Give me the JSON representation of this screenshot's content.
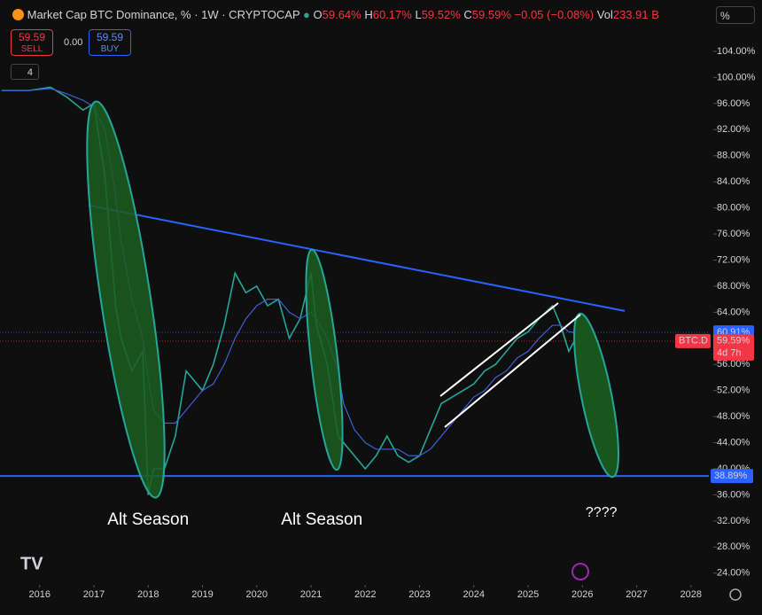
{
  "header": {
    "title": "Market Cap BTC Dominance, % · 1W · CRYPTOCAP",
    "ohlc": [
      {
        "key": "O",
        "value": "59.64%"
      },
      {
        "key": "H",
        "value": "60.17%"
      },
      {
        "key": "L",
        "value": "59.52%"
      },
      {
        "key": "C",
        "value": "59.59%"
      }
    ],
    "change": "−0.05 (−0.08%)",
    "vol_label": "Vol",
    "vol": "233.91 B"
  },
  "trade": {
    "sell_price": "59.59",
    "sell": "SELL",
    "spread": "0.00",
    "buy_price": "59.59",
    "buy": "BUY"
  },
  "toolbar": {
    "scale": "%",
    "indicators": "4"
  },
  "chart_data": {
    "type": "line",
    "x": [
      2015.3,
      2015.8,
      2016.2,
      2016.5,
      2016.8,
      2017.0,
      2017.2,
      2017.4,
      2017.5,
      2017.7,
      2017.9,
      2018.0,
      2018.1,
      2018.3,
      2018.5,
      2018.7,
      2018.9,
      2019.0,
      2019.2,
      2019.4,
      2019.6,
      2019.8,
      2020.0,
      2020.2,
      2020.4,
      2020.6,
      2020.8,
      2021.0,
      2021.1,
      2021.3,
      2021.5,
      2021.6,
      2021.8,
      2022.0,
      2022.2,
      2022.4,
      2022.6,
      2022.8,
      2023.0,
      2023.2,
      2023.4,
      2023.6,
      2023.8,
      2024.0,
      2024.2,
      2024.4,
      2024.6,
      2024.8,
      2025.0,
      2025.2,
      2025.45,
      2025.6,
      2025.75,
      2025.85
    ],
    "series": [
      {
        "name": "BTC.D",
        "color": "#26a69a",
        "values": [
          98,
          98,
          98.5,
          97,
          95,
          96,
          85,
          65,
          60,
          55,
          58,
          36,
          40,
          40,
          45,
          55,
          53,
          52,
          56,
          62,
          70,
          67,
          68,
          65,
          66,
          60,
          63,
          70,
          62,
          56,
          45,
          44,
          42,
          40,
          42,
          45,
          42,
          41,
          42,
          46,
          50,
          51,
          52,
          53,
          55,
          56,
          58,
          60,
          61,
          63,
          65,
          62,
          58,
          59.59
        ]
      },
      {
        "color": "#3f5fd8",
        "values": [
          98,
          98,
          98.3,
          97.5,
          96.5,
          95.5,
          92,
          82,
          75,
          66,
          60,
          54,
          49,
          47,
          47,
          49,
          51,
          52,
          53,
          56,
          60,
          63,
          65,
          66,
          66,
          64,
          63,
          64,
          63,
          60,
          55,
          50,
          46,
          44,
          43,
          43,
          43,
          42,
          42,
          43,
          45,
          47,
          49,
          51,
          52,
          54,
          55,
          57,
          58,
          60,
          62,
          62,
          61,
          60.91
        ]
      }
    ],
    "xlim": [
      2015.27,
      2028.33
    ],
    "xticks": [
      2016,
      2017,
      2018,
      2019,
      2020,
      2021,
      2022,
      2023,
      2024,
      2025,
      2026,
      2027,
      2028
    ],
    "ylim": [
      22.2,
      107.8
    ],
    "yticks": [
      {
        "value": 24,
        "label": "24.00%"
      },
      {
        "value": 28,
        "label": "28.00%"
      },
      {
        "value": 32,
        "label": "32.00%"
      },
      {
        "value": 36,
        "label": "36.00%"
      },
      {
        "value": 40,
        "label": "40.00%"
      },
      {
        "value": 44,
        "label": "44.00%"
      },
      {
        "value": 48,
        "label": "48.00%"
      },
      {
        "value": 52,
        "label": "52.00%"
      },
      {
        "value": 56,
        "label": "56.00%"
      },
      {
        "value": 60,
        "label": "60.00%"
      },
      {
        "value": 64,
        "label": "64.00%"
      },
      {
        "value": 68,
        "label": "68.00%"
      },
      {
        "value": 72,
        "label": "72.00%"
      },
      {
        "value": 76,
        "label": "76.00%"
      },
      {
        "value": 80,
        "label": "80.00%"
      },
      {
        "value": 84,
        "label": "84.00%"
      },
      {
        "value": 88,
        "label": "88.00%"
      },
      {
        "value": 92,
        "label": "92.00%"
      },
      {
        "value": 96,
        "label": "96.00%"
      },
      {
        "value": 100,
        "label": "100.00%"
      },
      {
        "value": 104,
        "label": "104.00%"
      }
    ],
    "support": {
      "value": 38.89,
      "label": "38.89%",
      "color": "#2962ff"
    },
    "trendline": {
      "x": [
        2016.9,
        2026.78
      ],
      "y": [
        80.4,
        64.2
      ],
      "color": "#2962ff"
    },
    "price_tags": [
      {
        "value": 60.91,
        "label": "60.91%",
        "color": "#2962ff"
      },
      {
        "value": 59.59,
        "label": "59.59%",
        "name": "BTC.D",
        "countdown": "4d 7h",
        "color": "#f23645"
      }
    ],
    "annotations": [
      {
        "text": "Alt Season",
        "x": 2018.0
      },
      {
        "text": "Alt Season",
        "x": 2021.2
      },
      {
        "text": "????",
        "x": 2026.35
      }
    ]
  }
}
